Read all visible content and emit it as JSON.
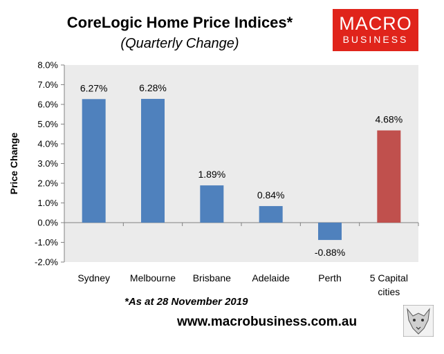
{
  "title": "CoreLogic Home Price Indices*",
  "subtitle": "(Quarterly Change)",
  "logo": {
    "line1": "MACRO",
    "line2": "BUSINESS"
  },
  "footnote": "*As at 28 November 2019",
  "url": "www.macrobusiness.com.au",
  "chart_data": {
    "type": "bar",
    "title": "CoreLogic Home Price Indices*",
    "subtitle": "(Quarterly Change)",
    "categories": [
      [
        "Sydney"
      ],
      [
        "Melbourne"
      ],
      [
        "Brisbane"
      ],
      [
        "Adelaide"
      ],
      [
        "Perth"
      ],
      [
        "5 Capital",
        "cities"
      ]
    ],
    "values": [
      6.27,
      6.28,
      1.89,
      0.84,
      -0.88,
      4.68
    ],
    "data_labels": [
      "6.27%",
      "6.28%",
      "1.89%",
      "0.84%",
      "-0.88%",
      "4.68%"
    ],
    "bar_colors": [
      "#4f81bd",
      "#4f81bd",
      "#4f81bd",
      "#4f81bd",
      "#4f81bd",
      "#c0504d"
    ],
    "xlabel": "",
    "ylabel": "Price Change",
    "ylim": [
      -2.0,
      8.0
    ],
    "yticks": [
      "8.0%",
      "7.0%",
      "6.0%",
      "5.0%",
      "4.0%",
      "3.0%",
      "2.0%",
      "1.0%",
      "0.0%",
      "-1.0%",
      "-2.0%"
    ],
    "plot_background": "#ebebeb",
    "grid": false,
    "legend": "none"
  }
}
